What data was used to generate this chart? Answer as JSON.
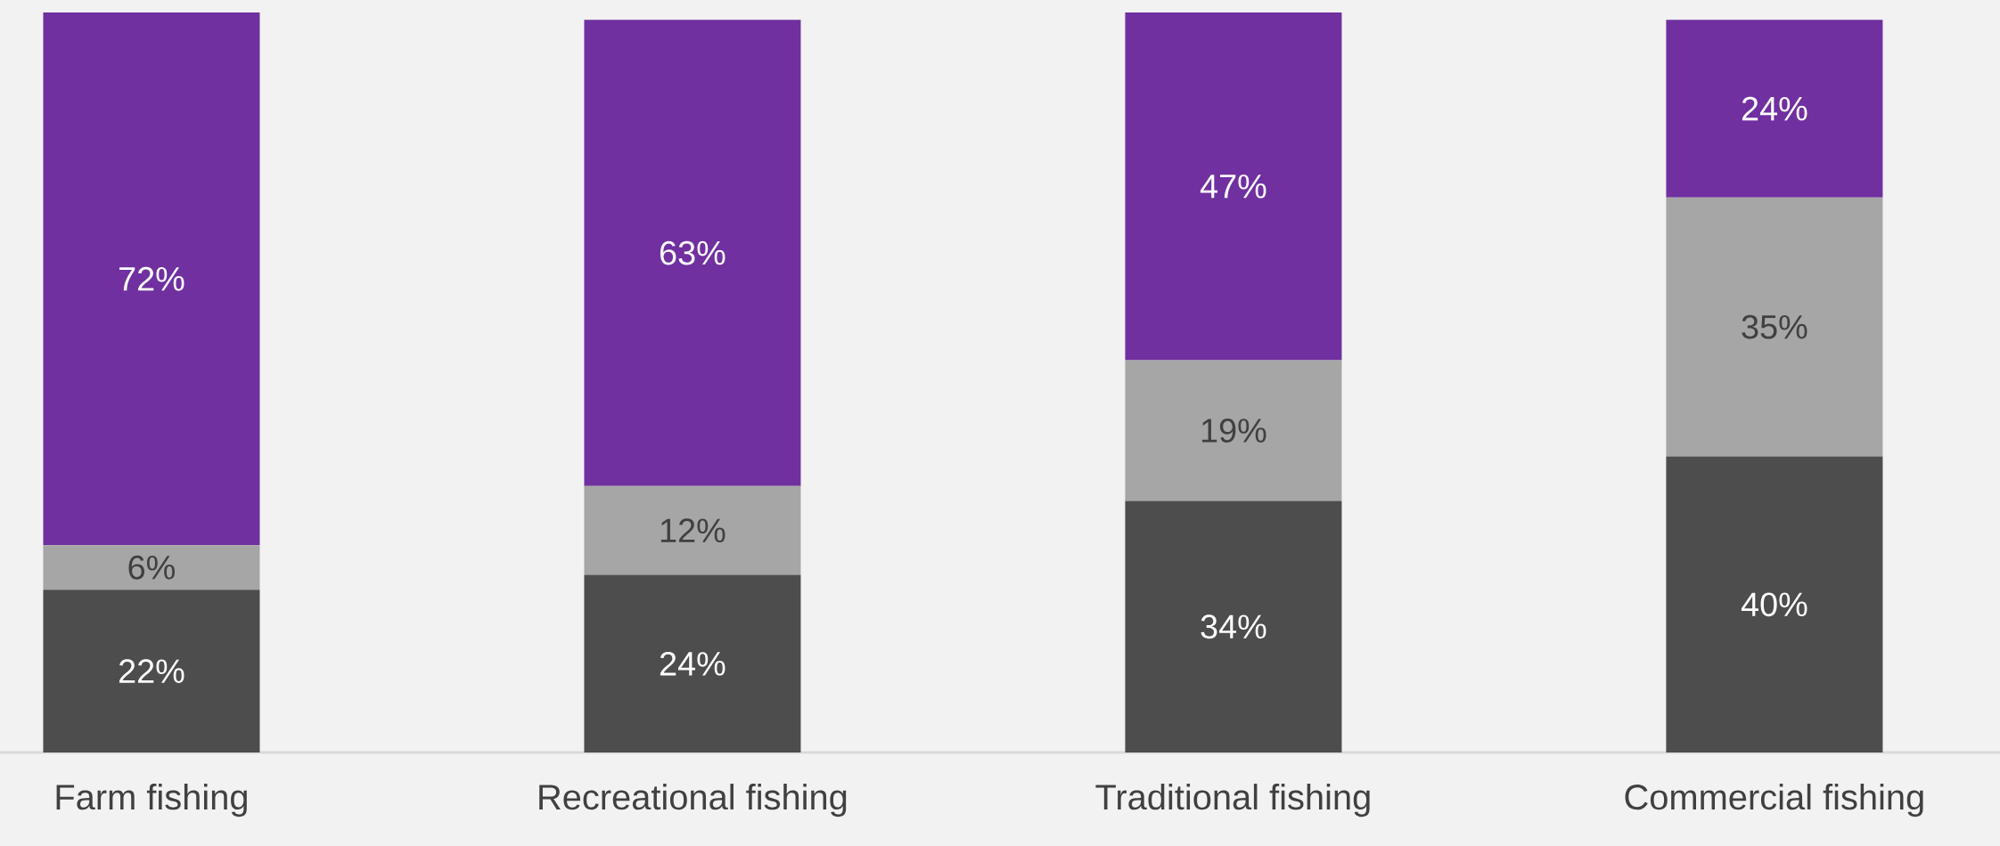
{
  "chart_data": {
    "type": "bar",
    "stacked": true,
    "categories": [
      "Farm fishing",
      "Recreational fishing",
      "Traditional fishing",
      "Commercial fishing"
    ],
    "series": [
      {
        "color": "#4d4d4d",
        "values": [
          22,
          24,
          34,
          40
        ],
        "value_labels": [
          "22%",
          "24%",
          "34%",
          "40%"
        ]
      },
      {
        "color": "#a6a6a6",
        "values": [
          6,
          12,
          19,
          35
        ],
        "value_labels": [
          "6%",
          "12%",
          "19%",
          "35%"
        ]
      },
      {
        "color": "#7030a0",
        "values": [
          72,
          63,
          47,
          24
        ],
        "value_labels": [
          "72%",
          "63%",
          "47%",
          "24%"
        ]
      }
    ]
  }
}
